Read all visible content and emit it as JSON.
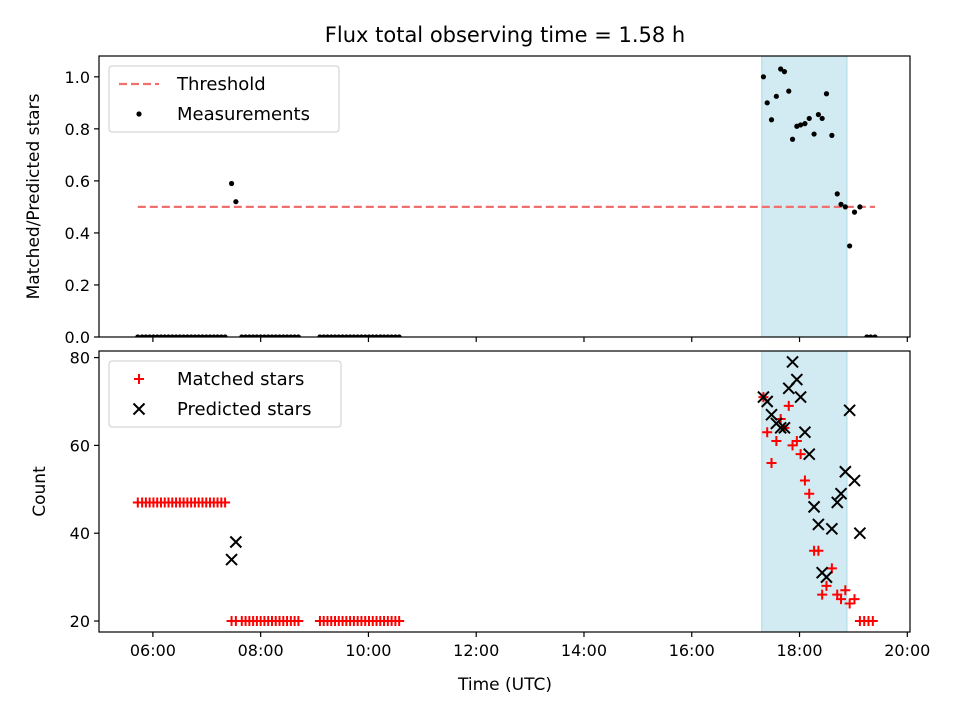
{
  "chart_data": {
    "type": "scatter",
    "title": "Flux total observing time = 1.58 h",
    "xlabel": "Time (UTC)",
    "x_unit": "hours UTC",
    "xlim": [
      5.0,
      20.05
    ],
    "x_ticks": [
      6,
      8,
      10,
      12,
      14,
      16,
      18,
      20
    ],
    "x_tick_labels": [
      "06:00",
      "08:00",
      "10:00",
      "12:00",
      "14:00",
      "16:00",
      "18:00",
      "20:00"
    ],
    "highlight_span": {
      "x0": 17.3,
      "x1": 18.88,
      "color": "#add8e6"
    },
    "panels": [
      {
        "ylabel": "Matched/Predicted stars",
        "ylim": [
          0.0,
          1.08
        ],
        "y_ticks": [
          0.0,
          0.2,
          0.4,
          0.6,
          0.8,
          1.0
        ],
        "y_tick_labels": [
          "0.0",
          "0.2",
          "0.4",
          "0.6",
          "0.8",
          "1.0"
        ],
        "legend_position": "top-left",
        "threshold": {
          "name": "Threshold",
          "y": 0.5,
          "x0": 5.72,
          "x1": 19.4,
          "color": "#f07070"
        },
        "series": [
          {
            "name": "Measurements",
            "marker": "dot",
            "color": "#000000",
            "points": [
              [
                5.72,
                0.0
              ],
              [
                5.8,
                0.0
              ],
              [
                5.87,
                0.0
              ],
              [
                5.94,
                0.0
              ],
              [
                6.01,
                0.0
              ],
              [
                6.08,
                0.0
              ],
              [
                6.15,
                0.0
              ],
              [
                6.22,
                0.0
              ],
              [
                6.29,
                0.0
              ],
              [
                6.36,
                0.0
              ],
              [
                6.43,
                0.0
              ],
              [
                6.5,
                0.0
              ],
              [
                6.57,
                0.0
              ],
              [
                6.64,
                0.0
              ],
              [
                6.71,
                0.0
              ],
              [
                6.78,
                0.0
              ],
              [
                6.85,
                0.0
              ],
              [
                6.92,
                0.0
              ],
              [
                6.99,
                0.0
              ],
              [
                7.06,
                0.0
              ],
              [
                7.13,
                0.0
              ],
              [
                7.2,
                0.0
              ],
              [
                7.27,
                0.0
              ],
              [
                7.34,
                0.0
              ],
              [
                7.46,
                0.59
              ],
              [
                7.54,
                0.52
              ],
              [
                7.65,
                0.0
              ],
              [
                7.72,
                0.0
              ],
              [
                7.79,
                0.0
              ],
              [
                7.86,
                0.0
              ],
              [
                7.93,
                0.0
              ],
              [
                8.0,
                0.0
              ],
              [
                8.07,
                0.0
              ],
              [
                8.14,
                0.0
              ],
              [
                8.21,
                0.0
              ],
              [
                8.28,
                0.0
              ],
              [
                8.35,
                0.0
              ],
              [
                8.42,
                0.0
              ],
              [
                8.49,
                0.0
              ],
              [
                8.56,
                0.0
              ],
              [
                8.63,
                0.0
              ],
              [
                8.7,
                0.0
              ],
              [
                9.1,
                0.0
              ],
              [
                9.17,
                0.0
              ],
              [
                9.24,
                0.0
              ],
              [
                9.31,
                0.0
              ],
              [
                9.38,
                0.0
              ],
              [
                9.45,
                0.0
              ],
              [
                9.52,
                0.0
              ],
              [
                9.59,
                0.0
              ],
              [
                9.66,
                0.0
              ],
              [
                9.73,
                0.0
              ],
              [
                9.8,
                0.0
              ],
              [
                9.87,
                0.0
              ],
              [
                9.94,
                0.0
              ],
              [
                10.01,
                0.0
              ],
              [
                10.08,
                0.0
              ],
              [
                10.15,
                0.0
              ],
              [
                10.22,
                0.0
              ],
              [
                10.29,
                0.0
              ],
              [
                10.36,
                0.0
              ],
              [
                10.43,
                0.0
              ],
              [
                10.5,
                0.0
              ],
              [
                10.57,
                0.0
              ],
              [
                17.33,
                1.0
              ],
              [
                17.4,
                0.9
              ],
              [
                17.48,
                0.835
              ],
              [
                17.57,
                0.925
              ],
              [
                17.65,
                1.03
              ],
              [
                17.72,
                1.02
              ],
              [
                17.8,
                0.945
              ],
              [
                17.87,
                0.76
              ],
              [
                17.95,
                0.81
              ],
              [
                18.02,
                0.815
              ],
              [
                18.1,
                0.82
              ],
              [
                18.18,
                0.84
              ],
              [
                18.27,
                0.78
              ],
              [
                18.35,
                0.855
              ],
              [
                18.42,
                0.84
              ],
              [
                18.5,
                0.935
              ],
              [
                18.6,
                0.775
              ],
              [
                18.7,
                0.55
              ],
              [
                18.77,
                0.51
              ],
              [
                18.85,
                0.5
              ],
              [
                18.93,
                0.35
              ],
              [
                19.02,
                0.48
              ],
              [
                19.12,
                0.5
              ],
              [
                19.25,
                0.0
              ],
              [
                19.32,
                0.0
              ],
              [
                19.4,
                0.0
              ]
            ]
          }
        ]
      },
      {
        "ylabel": "Count",
        "ylim": [
          17.5,
          81.5
        ],
        "y_ticks": [
          20,
          40,
          60,
          80
        ],
        "y_tick_labels": [
          "20",
          "40",
          "60",
          "80"
        ],
        "legend_position": "top-left",
        "series": [
          {
            "name": "Matched stars",
            "marker": "plus",
            "color": "#ff0000",
            "points": [
              [
                5.72,
                47
              ],
              [
                5.8,
                47
              ],
              [
                5.87,
                47
              ],
              [
                5.94,
                47
              ],
              [
                6.01,
                47
              ],
              [
                6.08,
                47
              ],
              [
                6.15,
                47
              ],
              [
                6.22,
                47
              ],
              [
                6.29,
                47
              ],
              [
                6.36,
                47
              ],
              [
                6.43,
                47
              ],
              [
                6.5,
                47
              ],
              [
                6.57,
                47
              ],
              [
                6.64,
                47
              ],
              [
                6.71,
                47
              ],
              [
                6.78,
                47
              ],
              [
                6.85,
                47
              ],
              [
                6.92,
                47
              ],
              [
                6.99,
                47
              ],
              [
                7.06,
                47
              ],
              [
                7.13,
                47
              ],
              [
                7.2,
                47
              ],
              [
                7.27,
                47
              ],
              [
                7.34,
                47
              ],
              [
                7.46,
                20
              ],
              [
                7.54,
                20
              ],
              [
                7.65,
                20
              ],
              [
                7.72,
                20
              ],
              [
                7.79,
                20
              ],
              [
                7.86,
                20
              ],
              [
                7.93,
                20
              ],
              [
                8.0,
                20
              ],
              [
                8.07,
                20
              ],
              [
                8.14,
                20
              ],
              [
                8.21,
                20
              ],
              [
                8.28,
                20
              ],
              [
                8.35,
                20
              ],
              [
                8.42,
                20
              ],
              [
                8.49,
                20
              ],
              [
                8.56,
                20
              ],
              [
                8.63,
                20
              ],
              [
                8.7,
                20
              ],
              [
                9.1,
                20
              ],
              [
                9.17,
                20
              ],
              [
                9.24,
                20
              ],
              [
                9.31,
                20
              ],
              [
                9.38,
                20
              ],
              [
                9.45,
                20
              ],
              [
                9.52,
                20
              ],
              [
                9.59,
                20
              ],
              [
                9.66,
                20
              ],
              [
                9.73,
                20
              ],
              [
                9.8,
                20
              ],
              [
                9.87,
                20
              ],
              [
                9.94,
                20
              ],
              [
                10.01,
                20
              ],
              [
                10.08,
                20
              ],
              [
                10.15,
                20
              ],
              [
                10.22,
                20
              ],
              [
                10.29,
                20
              ],
              [
                10.36,
                20
              ],
              [
                10.43,
                20
              ],
              [
                10.5,
                20
              ],
              [
                10.57,
                20
              ],
              [
                17.33,
                71
              ],
              [
                17.4,
                63
              ],
              [
                17.48,
                56
              ],
              [
                17.57,
                61
              ],
              [
                17.65,
                66
              ],
              [
                17.72,
                64
              ],
              [
                17.8,
                69
              ],
              [
                17.87,
                60
              ],
              [
                17.95,
                61
              ],
              [
                18.02,
                58
              ],
              [
                18.1,
                52
              ],
              [
                18.18,
                49
              ],
              [
                18.27,
                36
              ],
              [
                18.35,
                36
              ],
              [
                18.42,
                26
              ],
              [
                18.5,
                28
              ],
              [
                18.6,
                32
              ],
              [
                18.7,
                26
              ],
              [
                18.77,
                25
              ],
              [
                18.85,
                27
              ],
              [
                18.93,
                24
              ],
              [
                19.02,
                25
              ],
              [
                19.12,
                20
              ],
              [
                19.2,
                20
              ],
              [
                19.28,
                20
              ],
              [
                19.36,
                20
              ]
            ]
          },
          {
            "name": "Predicted stars",
            "marker": "x",
            "color": "#000000",
            "points": [
              [
                7.46,
                34
              ],
              [
                7.54,
                38
              ],
              [
                17.33,
                71
              ],
              [
                17.4,
                70
              ],
              [
                17.48,
                67
              ],
              [
                17.57,
                65
              ],
              [
                17.65,
                64
              ],
              [
                17.72,
                64
              ],
              [
                17.8,
                73
              ],
              [
                17.87,
                79
              ],
              [
                17.95,
                75
              ],
              [
                18.02,
                71
              ],
              [
                18.1,
                63
              ],
              [
                18.18,
                58
              ],
              [
                18.27,
                46
              ],
              [
                18.35,
                42
              ],
              [
                18.42,
                31
              ],
              [
                18.5,
                30
              ],
              [
                18.6,
                41
              ],
              [
                18.7,
                47
              ],
              [
                18.77,
                49
              ],
              [
                18.85,
                54
              ],
              [
                18.93,
                68
              ],
              [
                19.02,
                52
              ],
              [
                19.12,
                40
              ]
            ]
          }
        ]
      }
    ]
  }
}
